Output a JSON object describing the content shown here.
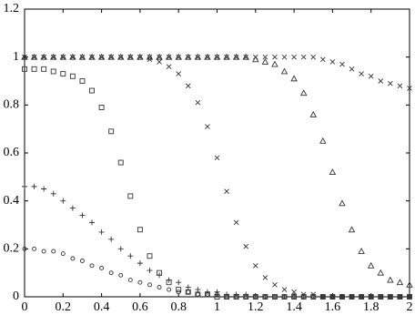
{
  "chart_data": {
    "type": "scatter",
    "x": [
      0,
      0.05,
      0.1,
      0.15,
      0.2,
      0.25,
      0.3,
      0.35,
      0.4,
      0.45,
      0.5,
      0.55,
      0.6,
      0.65,
      0.7,
      0.75,
      0.8,
      0.85,
      0.9,
      0.95,
      1,
      1.05,
      1.1,
      1.15,
      1.2,
      1.25,
      1.3,
      1.35,
      1.4,
      1.45,
      1.5,
      1.55,
      1.6,
      1.65,
      1.7,
      1.75,
      1.8,
      1.85,
      1.9,
      1.95,
      2
    ],
    "series": [
      {
        "marker": "square",
        "color": "#333333",
        "values": [
          0.95,
          0.95,
          0.95,
          0.94,
          0.93,
          0.92,
          0.9,
          0.86,
          0.79,
          0.69,
          0.56,
          0.42,
          0.28,
          0.17,
          0.1,
          0.06,
          0.03,
          0.02,
          0.01,
          0.01,
          0,
          0,
          0,
          0,
          0,
          0,
          0,
          0,
          0,
          0,
          0,
          0,
          0,
          0,
          0,
          0,
          0,
          0,
          0,
          0,
          0
        ]
      },
      {
        "marker": "cross",
        "color": "#333333",
        "values": [
          1,
          1,
          1,
          1,
          1,
          1,
          1,
          1,
          1,
          1,
          1,
          1,
          1,
          0.99,
          0.98,
          0.96,
          0.93,
          0.88,
          0.81,
          0.71,
          0.58,
          0.44,
          0.31,
          0.21,
          0.13,
          0.08,
          0.05,
          0.03,
          0.02,
          0.01,
          0.01,
          0,
          0,
          0,
          0,
          0,
          0,
          0,
          0,
          0,
          0
        ]
      },
      {
        "marker": "triangle",
        "color": "#333333",
        "values": [
          1,
          1,
          1,
          1,
          1,
          1,
          1,
          1,
          1,
          1,
          1,
          1,
          1,
          1,
          1,
          1,
          1,
          1,
          1,
          1,
          1,
          1,
          1,
          1,
          0.99,
          0.98,
          0.97,
          0.94,
          0.91,
          0.85,
          0.76,
          0.65,
          0.52,
          0.39,
          0.28,
          0.19,
          0.13,
          0.1,
          0.07,
          0.06,
          0.05
        ]
      },
      {
        "marker": "cross",
        "color": "#333333",
        "values": [
          1,
          1,
          1,
          1,
          1,
          1,
          1,
          1,
          1,
          1,
          1,
          1,
          1,
          1,
          1,
          1,
          1,
          1,
          1,
          1,
          1,
          1,
          1,
          1,
          1,
          1,
          1,
          1,
          1,
          1,
          1,
          0.99,
          0.98,
          0.97,
          0.95,
          0.93,
          0.92,
          0.9,
          0.89,
          0.88,
          0.87
        ]
      },
      {
        "marker": "plus",
        "color": "#333333",
        "values": [
          0.46,
          0.46,
          0.45,
          0.43,
          0.4,
          0.37,
          0.34,
          0.31,
          0.27,
          0.24,
          0.2,
          0.17,
          0.14,
          0.11,
          0.09,
          0.07,
          0.06,
          0.04,
          0.03,
          0.02,
          0.02,
          0.01,
          0.01,
          0.01,
          0,
          0,
          0,
          0,
          0,
          0,
          0,
          0,
          0,
          0,
          0,
          0,
          0,
          0,
          0,
          0,
          0
        ]
      },
      {
        "marker": "circle",
        "color": "#333333",
        "values": [
          0.2,
          0.2,
          0.19,
          0.19,
          0.18,
          0.16,
          0.15,
          0.13,
          0.12,
          0.1,
          0.09,
          0.07,
          0.06,
          0.05,
          0.04,
          0.03,
          0.02,
          0.02,
          0.01,
          0.01,
          0.01,
          0,
          0,
          0,
          0,
          0,
          0,
          0,
          0,
          0,
          0,
          0,
          0,
          0,
          0,
          0,
          0,
          0,
          0,
          0,
          0
        ]
      }
    ],
    "xlim": [
      0,
      2
    ],
    "ylim": [
      0,
      1.2
    ],
    "xticks": [
      0,
      0.2,
      0.4,
      0.6,
      0.8,
      1,
      1.2,
      1.4,
      1.6,
      1.8,
      2
    ],
    "yticks": [
      0,
      0.2,
      0.4,
      0.6,
      0.8,
      1,
      1.2
    ]
  }
}
